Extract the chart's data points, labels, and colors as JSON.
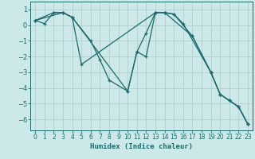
{
  "xlabel": "Humidex (Indice chaleur)",
  "bg_color": "#cce8e8",
  "grid_color": "#aacccc",
  "line_color": "#1a6b6b",
  "xlim": [
    -0.5,
    23.5
  ],
  "ylim": [
    -6.7,
    1.5
  ],
  "yticks": [
    1,
    0,
    -1,
    -2,
    -3,
    -4,
    -5,
    -6
  ],
  "xticks": [
    0,
    1,
    2,
    3,
    4,
    5,
    6,
    7,
    8,
    9,
    10,
    11,
    12,
    13,
    14,
    15,
    16,
    17,
    18,
    19,
    20,
    21,
    22,
    23
  ],
  "series": [
    {
      "x": [
        0,
        1,
        2,
        3,
        4,
        10,
        11,
        12,
        13,
        14,
        15,
        17,
        19,
        20,
        21,
        22,
        23
      ],
      "y": [
        0.3,
        0.1,
        0.8,
        0.8,
        0.5,
        -4.2,
        -1.7,
        -0.5,
        0.8,
        0.8,
        0.7,
        -0.7,
        -3.0,
        -4.4,
        -4.8,
        -5.2,
        -6.3
      ]
    },
    {
      "x": [
        0,
        2,
        3,
        4,
        6,
        7,
        8,
        10,
        11,
        12,
        13,
        14,
        17,
        19,
        20,
        21,
        22,
        23
      ],
      "y": [
        0.3,
        0.8,
        0.8,
        0.5,
        -1.0,
        -2.2,
        -3.5,
        -4.2,
        -1.7,
        -2.0,
        0.8,
        0.8,
        -0.7,
        -3.0,
        -4.4,
        -4.8,
        -5.2,
        -6.3
      ]
    },
    {
      "x": [
        0,
        3,
        4,
        5,
        13,
        14,
        15,
        16,
        19,
        20,
        21,
        22,
        23
      ],
      "y": [
        0.3,
        0.8,
        0.5,
        -2.5,
        0.8,
        0.8,
        0.7,
        0.1,
        -3.0,
        -4.4,
        -4.8,
        -5.2,
        -6.3
      ]
    }
  ]
}
